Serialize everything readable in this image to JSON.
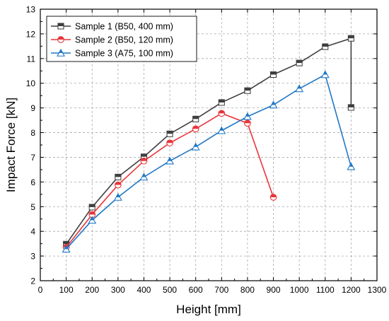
{
  "chart_data": {
    "type": "line",
    "title": "",
    "xlabel": "Height [mm]",
    "ylabel": "Impact Force [kN]",
    "xlim": [
      0,
      1300
    ],
    "ylim": [
      2,
      13
    ],
    "xticks": [
      0,
      100,
      200,
      300,
      400,
      500,
      600,
      700,
      800,
      900,
      1000,
      1100,
      1200,
      1300
    ],
    "yticks": [
      2,
      3,
      4,
      5,
      6,
      7,
      8,
      9,
      10,
      11,
      12,
      13
    ],
    "grid": "on (dashed)",
    "legend_position": "top-left",
    "series": [
      {
        "name": "Sample 1 (B50, 400 mm)",
        "color": "#3f3f3f",
        "marker": "square",
        "x": [
          100,
          200,
          300,
          400,
          500,
          600,
          700,
          800,
          900,
          1000,
          1100,
          1200,
          1200
        ],
        "y": [
          3.48,
          4.98,
          6.2,
          7.02,
          7.95,
          8.55,
          9.22,
          9.7,
          10.35,
          10.82,
          11.48,
          11.82,
          9.02
        ]
      },
      {
        "name": "Sample 2 (B50, 120 mm)",
        "color": "#e8363a",
        "marker": "circle",
        "x": [
          100,
          200,
          300,
          400,
          500,
          600,
          700,
          800,
          900
        ],
        "y": [
          3.35,
          4.68,
          5.88,
          6.85,
          7.58,
          8.15,
          8.78,
          8.38,
          5.38
        ]
      },
      {
        "name": "Sample 3 (A75, 100 mm)",
        "color": "#1f77c4",
        "marker": "triangle",
        "x": [
          100,
          200,
          300,
          400,
          500,
          600,
          700,
          800,
          900,
          1000,
          1100,
          1200
        ],
        "y": [
          3.28,
          4.45,
          5.38,
          6.2,
          6.85,
          7.42,
          8.08,
          8.65,
          9.12,
          9.78,
          10.35,
          6.62
        ]
      }
    ]
  }
}
